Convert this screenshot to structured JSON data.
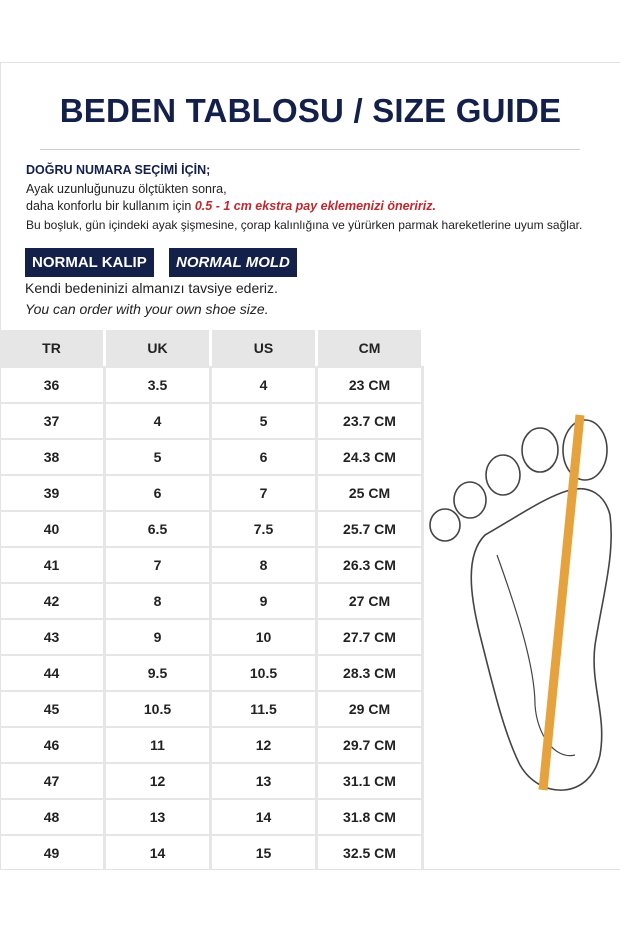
{
  "header": {
    "title": "BEDEN TABLOSU / SIZE GUIDE"
  },
  "intro": {
    "heading": "DOĞRU NUMARA SEÇİMİ İÇİN;",
    "line1": "Ayak uzunluğunuzu ölçtükten sonra,",
    "line2": "daha konforlu bir kullanım için",
    "line2_highlight": "0.5 - 1 cm ekstra pay eklemenizi öneririz.",
    "line3": "Bu boşluk, gün içindeki ayak şişmesine, çorap kalınlığına ve yürürken parmak hareketlerine uyum sağlar."
  },
  "badges": [
    "NORMAL KALIP",
    "NORMAL MOLD"
  ],
  "note": {
    "tr": "Kendi bedeninizi almanızı tavsiye ederiz.",
    "en": "You can order with your own shoe size."
  },
  "table": {
    "columns": [
      "TR",
      "UK",
      "US",
      "CM"
    ],
    "rows": [
      [
        "36",
        "3.5",
        "4",
        "23 CM"
      ],
      [
        "37",
        "4",
        "5",
        "23.7 CM"
      ],
      [
        "38",
        "5",
        "6",
        "24.3 CM"
      ],
      [
        "39",
        "6",
        "7",
        "25 CM"
      ],
      [
        "40",
        "6.5",
        "7.5",
        "25.7 CM"
      ],
      [
        "41",
        "7",
        "8",
        "26.3 CM"
      ],
      [
        "42",
        "8",
        "9",
        "27 CM"
      ],
      [
        "43",
        "9",
        "10",
        "27.7 CM"
      ],
      [
        "44",
        "9.5",
        "10.5",
        "28.3 CM"
      ],
      [
        "45",
        "10.5",
        "11.5",
        "29 CM"
      ],
      [
        "46",
        "11",
        "12",
        "29.7 CM"
      ],
      [
        "47",
        "12",
        "13",
        "31.1 CM"
      ],
      [
        "48",
        "13",
        "14",
        "31.8 CM"
      ],
      [
        "49",
        "14",
        "15",
        "32.5 CM"
      ]
    ]
  }
}
